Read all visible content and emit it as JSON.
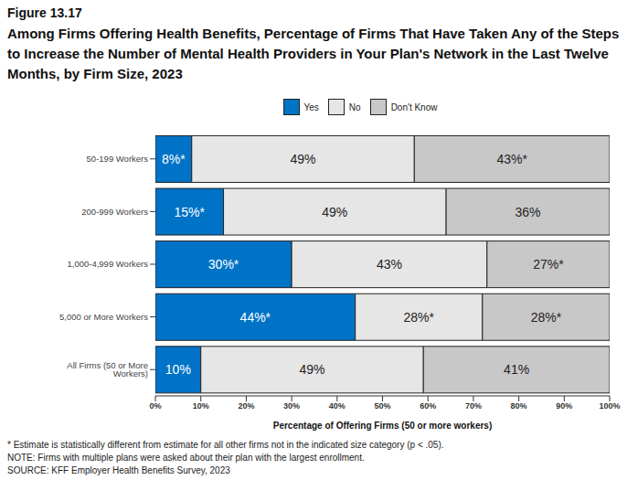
{
  "chart_data": {
    "type": "bar",
    "figure_label": "Figure 13.17",
    "title": "Among Firms Offering Health Benefits, Percentage of Firms That Have Taken Any of the Steps to Increase the Number of Mental Health Providers in Your Plan's Network in the Last Twelve Months, by Firm Size, 2023",
    "orientation": "horizontal",
    "stacked": true,
    "data_labels": true,
    "legend": "top",
    "grid": false,
    "categories": [
      "50-199 Workers",
      "200-999 Workers",
      "1,000-4,999 Workers",
      "5,000 or More Workers",
      "All Firms (50 or More Workers)"
    ],
    "series": [
      {
        "name": "Yes",
        "color": "#0073c6",
        "values": [
          8,
          15,
          30,
          44,
          10
        ],
        "value_labels": [
          "8%*",
          "15%*",
          "30%*",
          "44%*",
          "10%"
        ]
      },
      {
        "name": "No",
        "color": "#e6e6e6",
        "values": [
          49,
          49,
          43,
          28,
          49
        ],
        "value_labels": [
          "49%",
          "49%",
          "43%",
          "28%*",
          "49%"
        ]
      },
      {
        "name": "Don't Know",
        "color": "#c8c8c8",
        "values": [
          43,
          36,
          27,
          28,
          41
        ],
        "value_labels": [
          "43%*",
          "36%",
          "27%*",
          "28%*",
          "41%"
        ]
      }
    ],
    "xlim": [
      0,
      100
    ],
    "xticks": [
      {
        "value": 0,
        "label": "0%"
      },
      {
        "value": 10,
        "label": "10%"
      },
      {
        "value": 20,
        "label": "20%"
      },
      {
        "value": 30,
        "label": "30%"
      },
      {
        "value": 40,
        "label": "40%"
      },
      {
        "value": 50,
        "label": "50%"
      },
      {
        "value": 60,
        "label": "60%"
      },
      {
        "value": 70,
        "label": "70%"
      },
      {
        "value": 80,
        "label": "80%"
      },
      {
        "value": 90,
        "label": "90%"
      },
      {
        "value": 100,
        "label": "100%"
      }
    ],
    "xlabel": "Percentage of Offering Firms (50 or more workers)",
    "annotations": [
      "* Estimate is statistically different from estimate for all other firms not in the indicated size category (p < .05).",
      "NOTE: Firms with multiple plans were asked about their plan with the largest enrollment.",
      "SOURCE: KFF Employer Health Benefits Survey, 2023"
    ]
  }
}
